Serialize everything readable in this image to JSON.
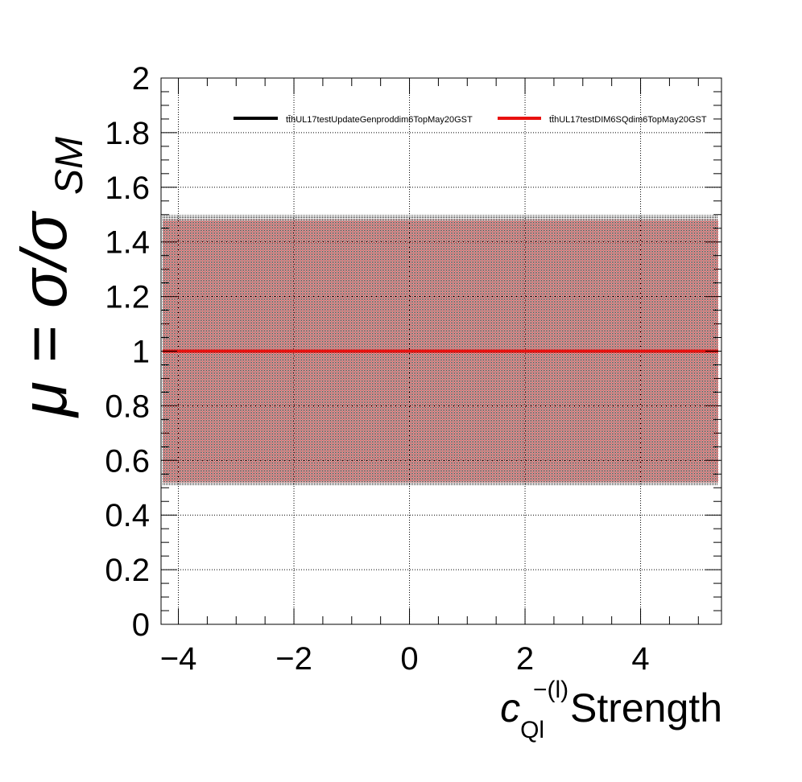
{
  "chart_data": {
    "type": "line",
    "xlim": [
      -4.3,
      5.4
    ],
    "ylim": [
      0,
      2
    ],
    "x_ticks": [
      -4,
      -2,
      0,
      2,
      4
    ],
    "x_tick_labels": [
      "−4",
      "−2",
      "0",
      "2",
      "4"
    ],
    "y_ticks": [
      0,
      0.2,
      0.4,
      0.6,
      0.8,
      1,
      1.2,
      1.4,
      1.6,
      1.8,
      2
    ],
    "y_tick_labels": [
      "0",
      "0.2",
      "0.4",
      "0.6",
      "0.8",
      "1",
      "1.2",
      "1.4",
      "1.6",
      "1.8",
      "2"
    ],
    "xlabel": {
      "symbol": "c",
      "superscript": "−(l)",
      "subscript": "Ql",
      "suffix": "Strength"
    },
    "ylabel": {
      "prefix": "μ = σ/σ",
      "subscript": "SM"
    },
    "grid": true,
    "legend_position": "top",
    "series": [
      {
        "name": "tt̄hUL17testUpdateGenproddim6TopMay20GST",
        "color": "#000000",
        "x": [
          -4.3,
          5.4
        ],
        "y": [
          1.0,
          1.0
        ],
        "band_low": [
          0.51,
          0.51
        ],
        "band_high": [
          1.5,
          1.5
        ]
      },
      {
        "name": "tt̄hUL17testDIM6SQdim6TopMay20GST",
        "color": "#e8110f",
        "x": [
          -4.3,
          5.4
        ],
        "y": [
          1.0,
          1.0
        ],
        "band_low": [
          0.52,
          0.52
        ],
        "band_high": [
          1.48,
          1.48
        ]
      }
    ]
  }
}
